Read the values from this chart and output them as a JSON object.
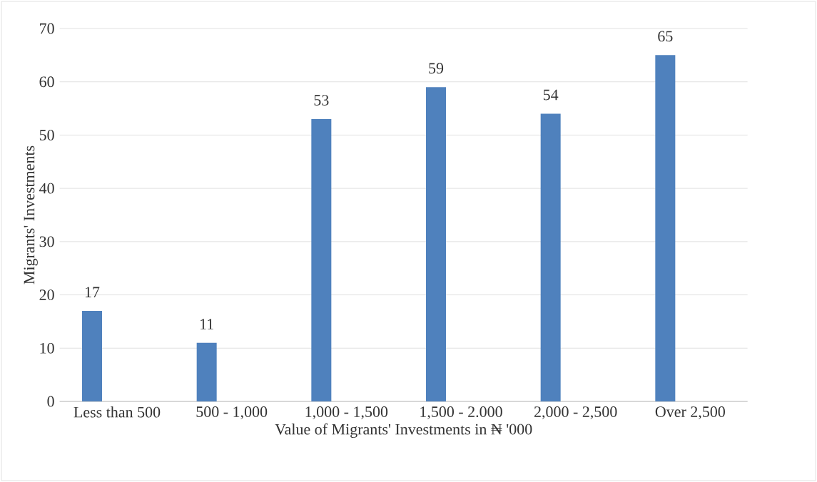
{
  "chart_data": {
    "type": "bar",
    "xlabel": "Value of Migrants' Investments in ₦ '000",
    "ylabel": "Migrants' Investments",
    "categories": [
      "Less than 500",
      "500 - 1,000",
      "1,000 - 1,500",
      "1,500 - 2.000",
      "2,000 - 2,500",
      "Over 2,500"
    ],
    "values": [
      17,
      11,
      53,
      59,
      54,
      65
    ],
    "color": "#4f81bd",
    "ylim": [
      0,
      70
    ],
    "yticks": [
      0,
      10,
      20,
      30,
      40,
      50,
      60,
      70
    ],
    "grid": "y",
    "data_labels": true
  }
}
